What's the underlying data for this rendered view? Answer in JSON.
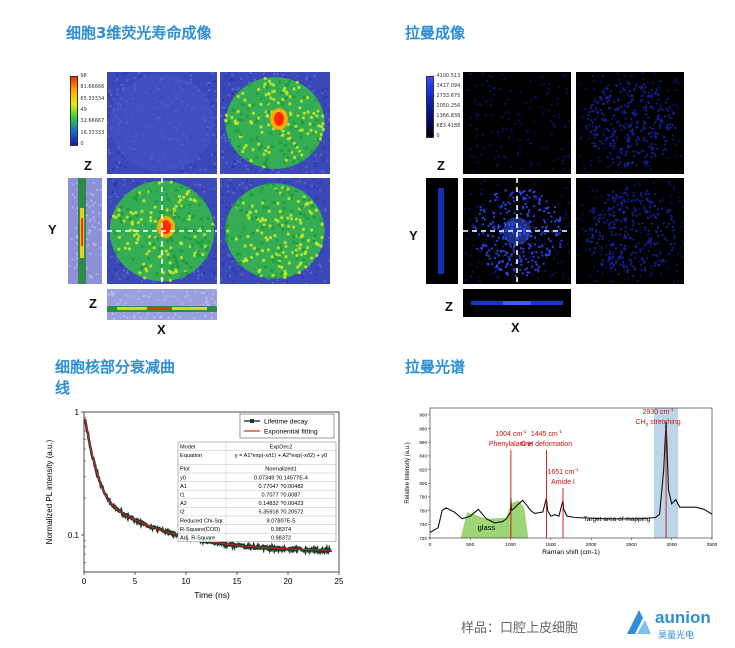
{
  "sections": {
    "flim_title": "细胞3维荧光寿命成像",
    "raman_img_title": "拉曼成像",
    "decay_title": "细胞核部分衰减曲线",
    "spectrum_title": "拉曼光谱"
  },
  "flim": {
    "axis_labels": {
      "z_top": "Z",
      "y": "Y",
      "z_bottom": "Z",
      "x": "X"
    },
    "colorbar_ticks": [
      "98",
      "81.66666",
      "65.33334",
      "49",
      "32.66667",
      "16.33333",
      "0"
    ],
    "colors": {
      "low": "#1a1aa8",
      "mid": "#2ccf3a",
      "high": "#ff2a00"
    }
  },
  "raman_img": {
    "axis_labels": {
      "z_top": "Z",
      "y": "Y",
      "z_bottom": "Z",
      "x": "X"
    },
    "colorbar_ticks": [
      "4100.513",
      "3417.094",
      "2733.675",
      "2050.256",
      "1366.838",
      "683.4188",
      "0"
    ],
    "colors": {
      "background": "#000000",
      "signal": "#1e3cff"
    }
  },
  "decay_chart": {
    "chart_data": {
      "type": "line",
      "xlabel": "Time (ns)",
      "ylabel": "Normalized PL intensity (a.u.)",
      "xlim": [
        0,
        25
      ],
      "ylim_log": [
        0.05,
        1
      ],
      "xticks": [
        "0",
        "5",
        "10",
        "15",
        "20",
        "25"
      ],
      "yticks": [
        "1",
        "0.1"
      ],
      "yscale": "log",
      "series": [
        {
          "name": "Lifetime decay",
          "color": "#1d3b2a",
          "model": {
            "y0": 0.07349,
            "A1": 0.77047,
            "t1": 0.7077,
            "A2": 0.14832,
            "t2": 5.35918
          }
        },
        {
          "name": "Exponential fitting",
          "color": "#e02020",
          "model": {
            "y0": 0.07349,
            "A1": 0.77047,
            "t1": 0.7077,
            "A2": 0.14832,
            "t2": 5.35918
          }
        }
      ],
      "legend_position": "top-right"
    },
    "fit_table": [
      [
        "Model",
        "ExpDec2"
      ],
      [
        "Equation",
        "y = A1*exp(-x/t1) + A2*exp(-x/t2) + y0"
      ],
      [
        "Plot",
        "Normalized1"
      ],
      [
        "y0",
        "0.07349 ?0.14577E-4"
      ],
      [
        "A1",
        "0.77047 ?0.00482"
      ],
      [
        "t1",
        "0.7077 ?0.0087"
      ],
      [
        "A2",
        "0.14832 ?0.00423"
      ],
      [
        "t2",
        "5.35918 ?0.20572"
      ],
      [
        "Reduced Chi-Sqr",
        "9.07807E-5"
      ],
      [
        "R-Square(COD)",
        "0.98374"
      ],
      [
        "Adj. R-Square",
        "0.98372"
      ]
    ]
  },
  "spectrum_chart": {
    "chart_data": {
      "type": "line",
      "xlabel": "Raman shift (cm-1)",
      "ylabel": "Relative Intensity (a.u.)",
      "xlim": [
        0,
        3500
      ],
      "ylim": [
        720,
        910
      ],
      "xticks": [
        "0",
        "500",
        "1000",
        "1500",
        "2000",
        "2500",
        "3000",
        "3500"
      ],
      "yticks": [
        "720",
        "740",
        "760",
        "780",
        "800",
        "820",
        "840",
        "860",
        "880",
        "900"
      ],
      "series": [
        {
          "name": "",
          "color": "#111111",
          "x": [
            0,
            100,
            150,
            200,
            300,
            400,
            500,
            600,
            700,
            800,
            900,
            950,
            1000,
            1004,
            1010,
            1050,
            1100,
            1150,
            1200,
            1250,
            1300,
            1400,
            1445,
            1460,
            1500,
            1550,
            1600,
            1651,
            1660,
            1700,
            1800,
            2000,
            2200,
            2400,
            2600,
            2700,
            2800,
            2850,
            2900,
            2930,
            2960,
            3000,
            3050,
            3100,
            3200,
            3300,
            3400,
            3500
          ],
          "y": [
            728,
            735,
            760,
            764,
            758,
            748,
            752,
            762,
            748,
            742,
            744,
            748,
            758,
            778,
            760,
            764,
            770,
            775,
            768,
            760,
            756,
            758,
            778,
            760,
            752,
            754,
            752,
            775,
            762,
            752,
            750,
            749,
            748,
            748,
            748,
            749,
            750,
            755,
            820,
            890,
            790,
            770,
            776,
            765,
            765,
            765,
            762,
            755
          ]
        }
      ],
      "annotations": [
        {
          "x": 1004,
          "label_line1": "1004 cm",
          "sup1": "-1",
          "label_line2": "Phenylalanine"
        },
        {
          "x": 1445,
          "label_line1": "1445 cm",
          "sup1": "-1",
          "label_line2": "C-H deformation"
        },
        {
          "x": 1651,
          "label_line1": "1651 cm",
          "sup1": "-1",
          "label_line2": "Amide I"
        },
        {
          "x": 2930,
          "label_line1": "2930 cm",
          "sup1": "-1",
          "label_line2": "CH",
          "sub2": "3",
          "label_line2b": " stretching"
        }
      ],
      "regions": [
        {
          "label": "glass",
          "x_from": 380,
          "x_to": 1220,
          "color": "#7cc84a"
        },
        {
          "label": "Target area of mapping",
          "x_from": 2780,
          "x_to": 3080,
          "color": "#9fc3e0"
        }
      ]
    }
  },
  "footer": {
    "sample_label": "样品：口腔上皮细胞",
    "logo_name": "aunion",
    "logo_sub": "昊量光电"
  }
}
